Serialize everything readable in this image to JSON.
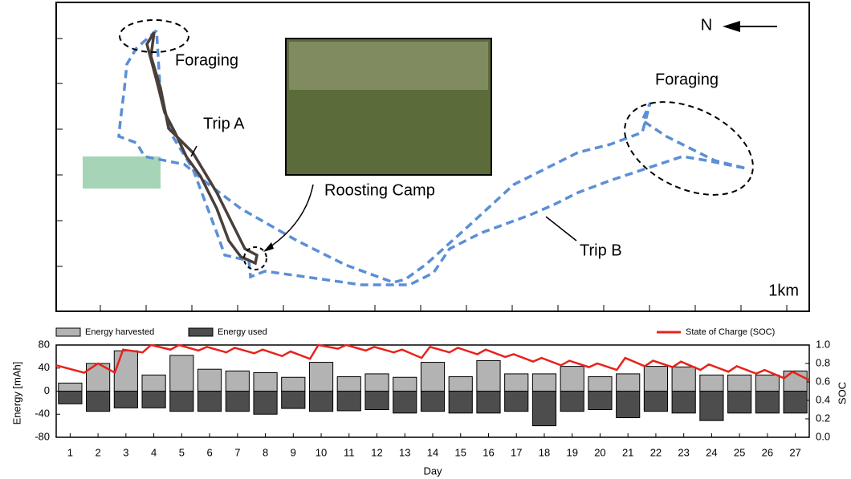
{
  "map": {
    "north": "N",
    "foraging_left": "Foraging",
    "foraging_right": "Foraging",
    "trip_a": "Trip A",
    "trip_b": "Trip B",
    "roosting_camp": "Roosting Camp",
    "scale": "1km"
  },
  "chart_data": {
    "type": "bar",
    "xlabel": "Day",
    "ylabel": "Energy [mAh]",
    "y2label": "SOC",
    "categories": [
      1,
      2,
      3,
      4,
      5,
      6,
      7,
      8,
      9,
      10,
      11,
      12,
      13,
      14,
      15,
      16,
      17,
      18,
      19,
      20,
      21,
      22,
      23,
      24,
      25,
      26,
      27
    ],
    "series": [
      {
        "name": "Energy harvested",
        "color": "#b3b3b3",
        "values": [
          14,
          48,
          70,
          28,
          62,
          38,
          35,
          32,
          24,
          50,
          25,
          30,
          24,
          50,
          25,
          53,
          30,
          30,
          43,
          25,
          30,
          43,
          42,
          28,
          28,
          28,
          35
        ]
      },
      {
        "name": "Energy used",
        "color": "#4d4d4d",
        "values": [
          -22,
          -35,
          -29,
          -29,
          -35,
          -35,
          -35,
          -40,
          -30,
          -35,
          -34,
          -32,
          -38,
          -35,
          -38,
          -38,
          -35,
          -60,
          -35,
          -32,
          -46,
          -35,
          -38,
          -51,
          -38,
          -38,
          -38
        ]
      },
      {
        "name": "State of Charge (SOC)",
        "color": "#e8221b",
        "axis": "y2",
        "x": [
          0.5,
          1.5,
          2.0,
          2.6,
          2.9,
          3.6,
          3.9,
          4.6,
          4.9,
          5.6,
          5.9,
          6.6,
          6.9,
          7.6,
          7.9,
          8.6,
          8.9,
          9.6,
          9.9,
          10.6,
          10.9,
          11.6,
          11.9,
          12.6,
          12.9,
          13.6,
          13.9,
          14.6,
          14.9,
          15.6,
          15.9,
          16.6,
          16.9,
          17.6,
          17.9,
          18.6,
          18.9,
          19.6,
          19.9,
          20.6,
          20.9,
          21.6,
          21.9,
          22.6,
          22.9,
          23.6,
          23.9,
          24.6,
          24.9,
          25.6,
          25.9,
          26.6,
          26.9,
          27.5
        ],
        "values": [
          0.78,
          0.7,
          0.8,
          0.7,
          0.95,
          0.92,
          1.0,
          0.95,
          1.0,
          0.94,
          0.98,
          0.92,
          0.97,
          0.91,
          0.95,
          0.88,
          0.93,
          0.85,
          1.0,
          0.96,
          1.0,
          0.94,
          0.98,
          0.92,
          0.95,
          0.86,
          0.98,
          0.92,
          0.97,
          0.9,
          0.95,
          0.87,
          0.9,
          0.82,
          0.86,
          0.78,
          0.83,
          0.76,
          0.8,
          0.73,
          0.86,
          0.77,
          0.83,
          0.76,
          0.82,
          0.73,
          0.79,
          0.71,
          0.77,
          0.69,
          0.73,
          0.64,
          0.71,
          0.62
        ]
      }
    ],
    "ylim": [
      -80,
      80
    ],
    "yticks": [
      -80,
      -40,
      0,
      40,
      80
    ],
    "y2lim": [
      0,
      1
    ],
    "y2ticks": [
      {
        "value": 0,
        "label": "0.0"
      },
      0.2,
      0.4,
      0.6,
      0.8,
      {
        "value": 1,
        "label": "1.0"
      }
    ]
  }
}
